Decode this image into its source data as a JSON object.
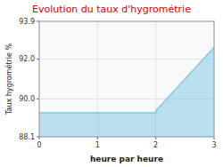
{
  "chart_data": {
    "type": "area",
    "title": "Evolution du taux d'hygrométrie",
    "x_label": "heure par heure",
    "y_label": "Taux hygrométrie %",
    "x": [
      0,
      2,
      2,
      3
    ],
    "values": [
      89.3,
      89.3,
      89.4,
      92.6
    ],
    "color": "#7ec8e3",
    "xlim": [
      0,
      3
    ],
    "ylim": [
      88.1,
      93.9
    ],
    "xticks": [
      0,
      1,
      2,
      3
    ],
    "yticks": [
      88.1,
      {
        "value": 90.0,
        "label": "90.0"
      },
      {
        "value": 92.0,
        "label": "92.0"
      },
      93.9
    ],
    "grid": true
  }
}
